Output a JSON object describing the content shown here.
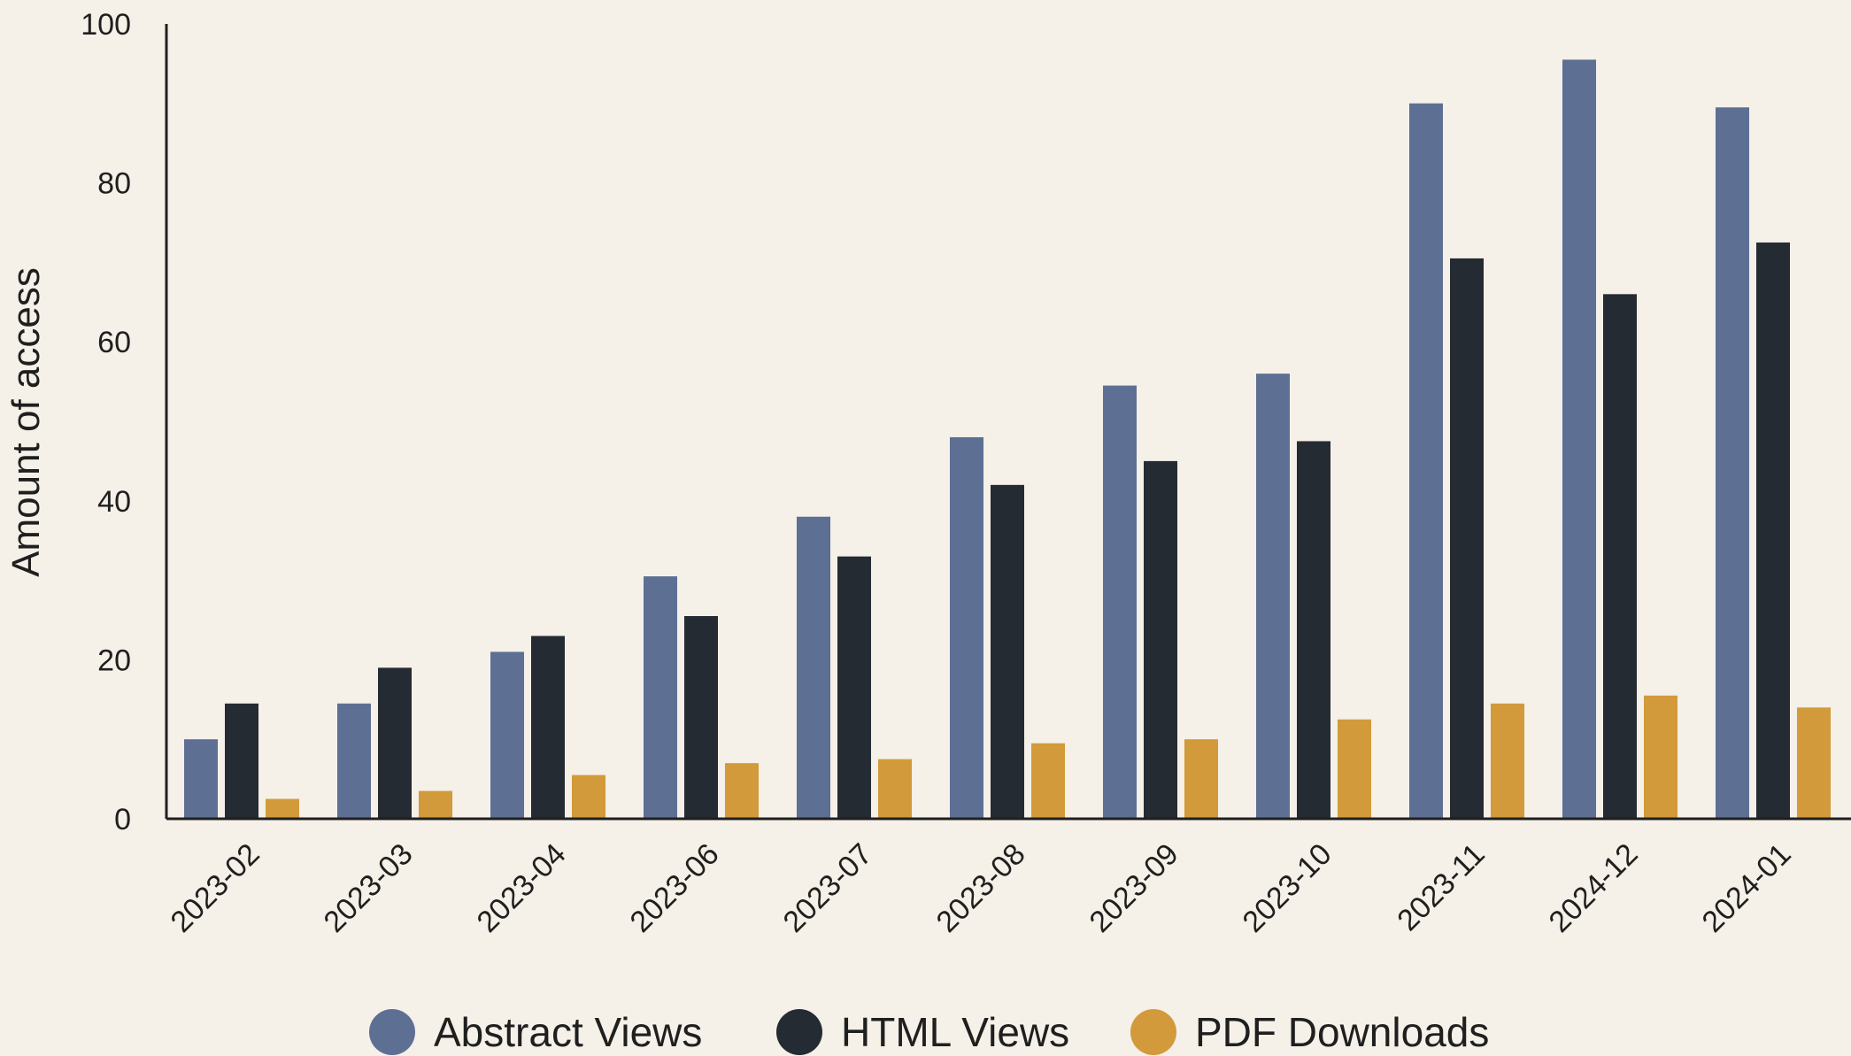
{
  "chart_data": {
    "type": "bar",
    "title": "",
    "xlabel": "",
    "ylabel": "Amount of access",
    "ylim": [
      0,
      100
    ],
    "yticks": [
      0,
      20,
      40,
      60,
      80,
      100
    ],
    "grid": false,
    "legend_position": "bottom",
    "categories": [
      "2023-02",
      "2023-03",
      "2023-04",
      "2023-06",
      "2023-07",
      "2023-08",
      "2023-09",
      "2023-10",
      "2023-11",
      "2024-12",
      "2024-01"
    ],
    "series": [
      {
        "name": "Abstract Views",
        "color": "#5e6f94",
        "values": [
          10,
          14.5,
          21,
          30.5,
          38,
          48,
          54.5,
          56,
          90,
          95.5,
          89.5
        ]
      },
      {
        "name": "HTML Views",
        "color": "#252b33",
        "values": [
          14.5,
          19,
          23,
          25.5,
          33,
          42,
          45,
          47.5,
          70.5,
          66,
          72.5
        ]
      },
      {
        "name": "PDF Downloads",
        "color": "#d29a3a",
        "values": [
          2.5,
          3.5,
          5.5,
          7,
          7.5,
          9.5,
          10,
          12.5,
          14.5,
          15.5,
          14
        ]
      }
    ]
  }
}
